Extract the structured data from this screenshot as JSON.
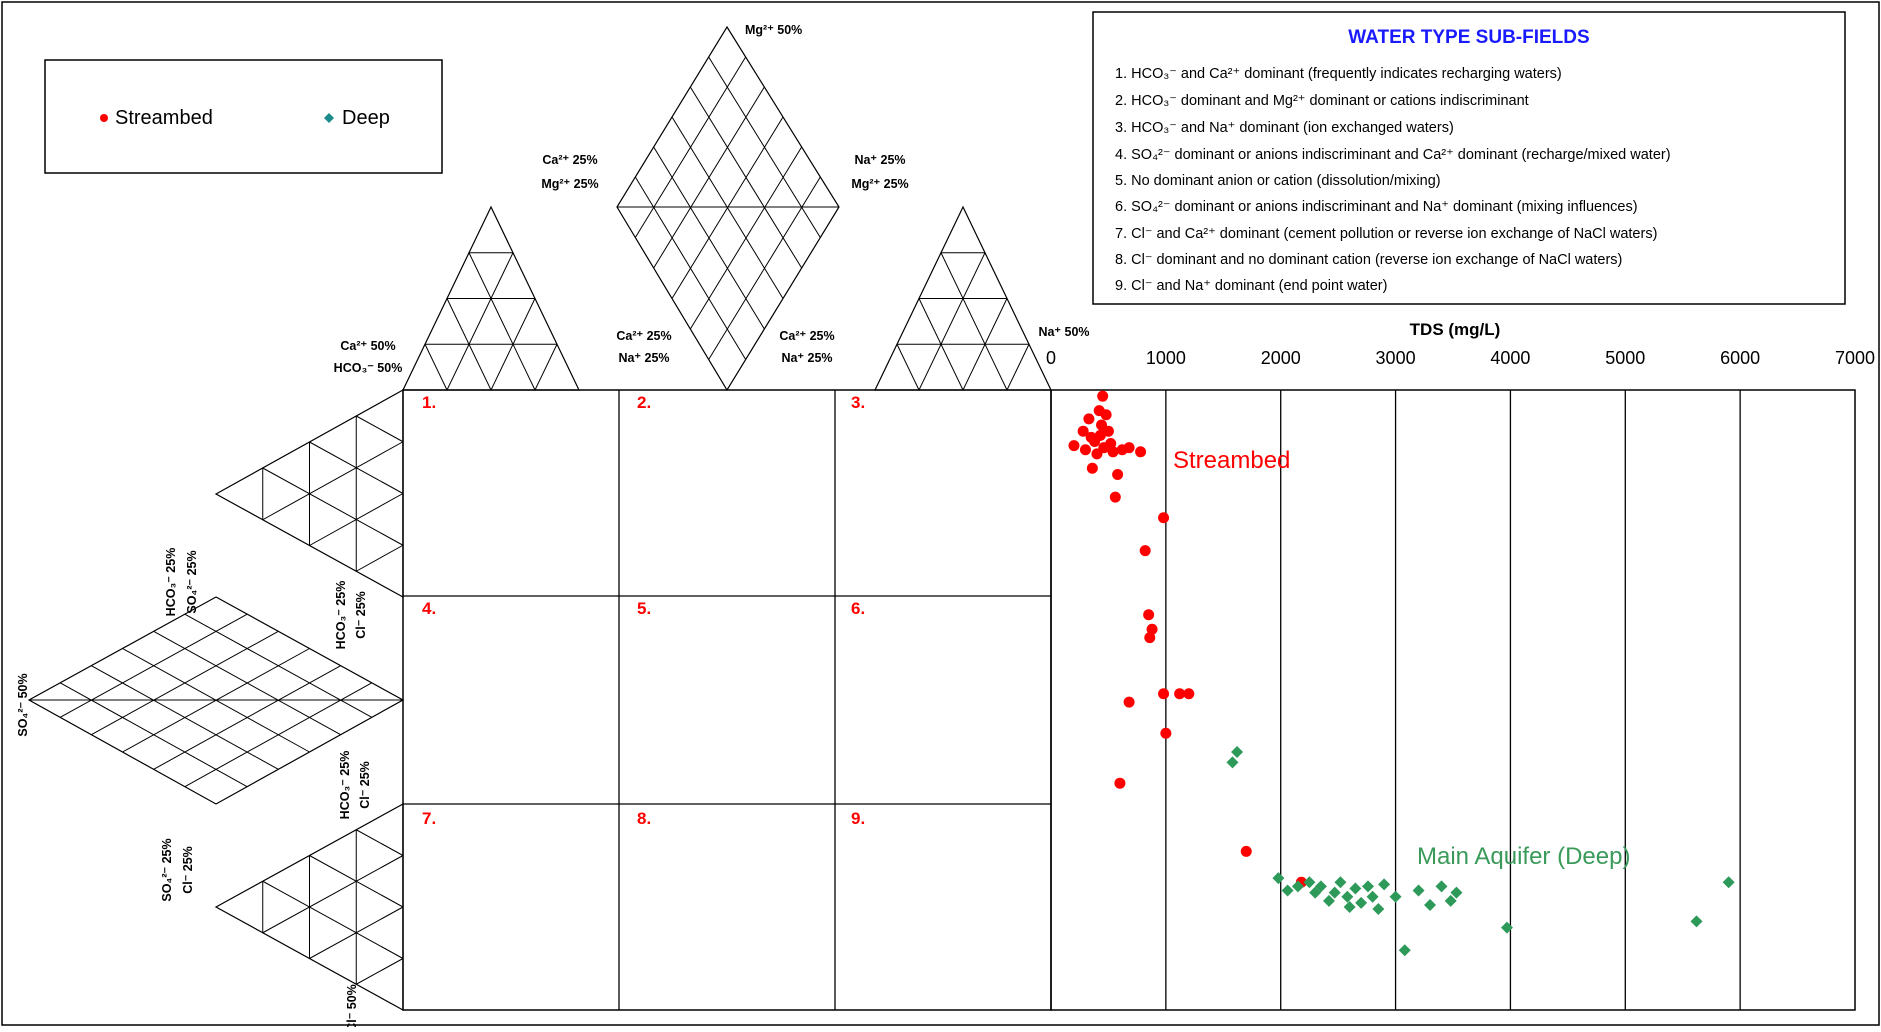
{
  "colors": {
    "streambed": "#ff0000",
    "deep_marker": "#2e9a5a",
    "deep_legend": "#1a8a8a",
    "legend_title": "#1a1aff",
    "field_number": "#ff0000",
    "label_main_aquifer": "#3a9a5a",
    "grid_line": "#000000",
    "sub_grid": "#000000"
  },
  "legend": {
    "items": [
      {
        "label": "Streambed",
        "marker": "circle",
        "color": "#ff0000"
      },
      {
        "label": "Deep",
        "marker": "diamond",
        "color": "#1a8a8a"
      }
    ]
  },
  "subfields_box": {
    "title": "WATER TYPE SUB-FIELDS",
    "items": [
      "1. HCO₃⁻ and Ca²⁺ dominant (frequently indicates recharging waters)",
      "2. HCO₃⁻ dominant and Mg²⁺ dominant or cations indiscriminant",
      "3. HCO₃⁻ and Na⁺ dominant (ion exchanged waters)",
      "4. SO₄²⁻ dominant or anions indiscriminant and Ca²⁺ dominant (recharge/mixed water)",
      "5. No dominant anion or cation (dissolution/mixing)",
      "6. SO₄²⁻ dominant or anions indiscriminant and Na⁺ dominant (mixing influences)",
      "7. Cl⁻ and Ca²⁺ dominant (cement pollution or reverse ion exchange of NaCl waters)",
      "8. Cl⁻ dominant and no dominant cation  (reverse ion exchange of NaCl waters)",
      "9. Cl⁻ and Na⁺ dominant (end point water)"
    ]
  },
  "ternary_labels": {
    "mg50": "Mg²⁺ 50%",
    "ca25_mg25": [
      "Ca²⁺ 25%",
      "Mg²⁺ 25%"
    ],
    "na25_mg25": [
      "Na⁺ 25%",
      "Mg²⁺ 25%"
    ],
    "ca25_na25_left": [
      "Ca²⁺ 25%",
      "Na⁺ 25%"
    ],
    "ca25_na25_right": [
      "Ca²⁺ 25%",
      "Na⁺ 25%"
    ],
    "ca50_hco3_50": [
      "Ca²⁺ 50%",
      "HCO₃⁻ 50%"
    ],
    "na50": "Na⁺ 50%",
    "hco3_25_so4_25": [
      "HCO₃⁻ 25%",
      "SO₄²⁻ 25%"
    ],
    "hco3_25_cl_25_a": [
      "HCO₃⁻ 25%",
      "Cl⁻ 25%"
    ],
    "hco3_25_cl_25_b": [
      "HCO₃⁻ 25%",
      "Cl⁻ 25%"
    ],
    "so4_50": "SO₄²⁻ 50%",
    "so4_25_cl_25": [
      "SO₄²⁻ 25%",
      "Cl⁻ 25%"
    ],
    "cl_50": "Cl⁻ 50%"
  },
  "field_numbers": [
    "1.",
    "2.",
    "3.",
    "4.",
    "5.",
    "6.",
    "7.",
    "8.",
    "9."
  ],
  "annotations": {
    "streambed": "Streambed",
    "main_aquifer": "Main Aquifer (Deep)"
  },
  "chart_data": {
    "type": "scatter",
    "title": "",
    "xlabel": "TDS (mg/L)",
    "ylabel": "",
    "xlim": [
      0,
      7000
    ],
    "x_ticks": [
      0,
      1000,
      2000,
      3000,
      4000,
      5000,
      6000,
      7000
    ],
    "grid": true,
    "series": [
      {
        "name": "Streambed",
        "marker": "circle",
        "color": "#ff0000",
        "tds_points": [
          {
            "field": 3,
            "x": 200,
            "y": 0.73
          },
          {
            "field": 3,
            "x": 280,
            "y": 0.8
          },
          {
            "field": 3,
            "x": 300,
            "y": 0.71
          },
          {
            "field": 3,
            "x": 330,
            "y": 0.86
          },
          {
            "field": 3,
            "x": 350,
            "y": 0.77
          },
          {
            "field": 3,
            "x": 360,
            "y": 0.62
          },
          {
            "field": 3,
            "x": 380,
            "y": 0.75
          },
          {
            "field": 3,
            "x": 400,
            "y": 0.69
          },
          {
            "field": 3,
            "x": 420,
            "y": 0.9
          },
          {
            "field": 3,
            "x": 430,
            "y": 0.78
          },
          {
            "field": 3,
            "x": 440,
            "y": 0.83
          },
          {
            "field": 3,
            "x": 450,
            "y": 0.97
          },
          {
            "field": 3,
            "x": 460,
            "y": 0.72
          },
          {
            "field": 3,
            "x": 480,
            "y": 0.88
          },
          {
            "field": 3,
            "x": 500,
            "y": 0.8
          },
          {
            "field": 3,
            "x": 520,
            "y": 0.74
          },
          {
            "field": 3,
            "x": 540,
            "y": 0.7
          },
          {
            "field": 3,
            "x": 560,
            "y": 0.48
          },
          {
            "field": 3,
            "x": 580,
            "y": 0.59
          },
          {
            "field": 3,
            "x": 620,
            "y": 0.71
          },
          {
            "field": 3,
            "x": 680,
            "y": 0.72
          },
          {
            "field": 3,
            "x": 780,
            "y": 0.7
          },
          {
            "field": 3,
            "x": 820,
            "y": 0.22
          },
          {
            "field": 3,
            "x": 980,
            "y": 0.38
          },
          {
            "field": 6,
            "x": 600,
            "y": 0.1
          },
          {
            "field": 6,
            "x": 680,
            "y": 0.49
          },
          {
            "field": 6,
            "x": 850,
            "y": 0.91
          },
          {
            "field": 6,
            "x": 860,
            "y": 0.8
          },
          {
            "field": 6,
            "x": 880,
            "y": 0.84
          },
          {
            "field": 6,
            "x": 980,
            "y": 0.53
          },
          {
            "field": 6,
            "x": 1000,
            "y": 0.34
          },
          {
            "field": 6,
            "x": 1120,
            "y": 0.53
          },
          {
            "field": 6,
            "x": 1200,
            "y": 0.53
          },
          {
            "field": 9,
            "x": 1700,
            "y": 0.77
          },
          {
            "field": 9,
            "x": 2180,
            "y": 0.62
          }
        ]
      },
      {
        "name": "Main Aquifer (Deep)",
        "marker": "diamond",
        "color": "#2e9a5a",
        "tds_points": [
          {
            "field": 6,
            "x": 1580,
            "y": 0.2
          },
          {
            "field": 6,
            "x": 1620,
            "y": 0.25
          },
          {
            "field": 9,
            "x": 1980,
            "y": 0.64
          },
          {
            "field": 9,
            "x": 2060,
            "y": 0.58
          },
          {
            "field": 9,
            "x": 2150,
            "y": 0.6
          },
          {
            "field": 9,
            "x": 2250,
            "y": 0.62
          },
          {
            "field": 9,
            "x": 2300,
            "y": 0.57
          },
          {
            "field": 9,
            "x": 2350,
            "y": 0.6
          },
          {
            "field": 9,
            "x": 2420,
            "y": 0.53
          },
          {
            "field": 9,
            "x": 2470,
            "y": 0.57
          },
          {
            "field": 9,
            "x": 2520,
            "y": 0.62
          },
          {
            "field": 9,
            "x": 2580,
            "y": 0.55
          },
          {
            "field": 9,
            "x": 2600,
            "y": 0.5
          },
          {
            "field": 9,
            "x": 2650,
            "y": 0.59
          },
          {
            "field": 9,
            "x": 2700,
            "y": 0.52
          },
          {
            "field": 9,
            "x": 2760,
            "y": 0.6
          },
          {
            "field": 9,
            "x": 2800,
            "y": 0.55
          },
          {
            "field": 9,
            "x": 2850,
            "y": 0.49
          },
          {
            "field": 9,
            "x": 2900,
            "y": 0.61
          },
          {
            "field": 9,
            "x": 3000,
            "y": 0.55
          },
          {
            "field": 9,
            "x": 3080,
            "y": 0.29
          },
          {
            "field": 9,
            "x": 3200,
            "y": 0.58
          },
          {
            "field": 9,
            "x": 3300,
            "y": 0.51
          },
          {
            "field": 9,
            "x": 3400,
            "y": 0.6
          },
          {
            "field": 9,
            "x": 3480,
            "y": 0.53
          },
          {
            "field": 9,
            "x": 3530,
            "y": 0.57
          },
          {
            "field": 9,
            "x": 3970,
            "y": 0.4
          },
          {
            "field": 9,
            "x": 5620,
            "y": 0.43
          },
          {
            "field": 9,
            "x": 5900,
            "y": 0.62
          }
        ]
      }
    ]
  }
}
